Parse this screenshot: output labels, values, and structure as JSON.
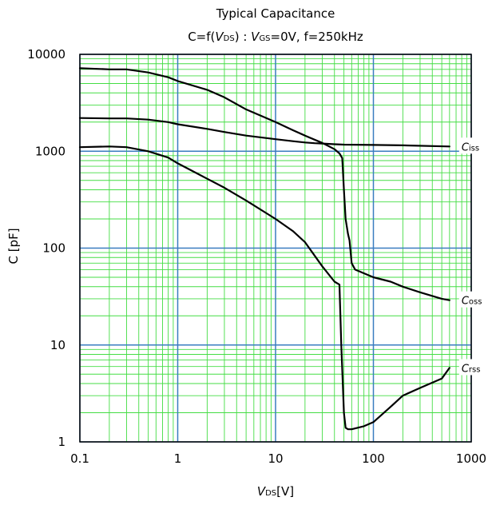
{
  "chart_data": {
    "type": "line",
    "title": "Typical Capacitance",
    "subtitle": {
      "prefix": "C=f(",
      "var1_main": "V",
      "var1_sub": "DS",
      "mid": ") : ",
      "var2_main": "V",
      "var2_sub": "GS",
      "suffix": "=0V, f=250kHz"
    },
    "xlabel": {
      "main": "V",
      "sub": "DS",
      "unit": "[V]"
    },
    "ylabel": "C  [pF]",
    "x_scale": "log",
    "y_scale": "log",
    "xlim": [
      0.1,
      1000
    ],
    "ylim": [
      1,
      10000
    ],
    "x_ticks": [
      {
        "value": 0.1,
        "label": "0.1"
      },
      {
        "value": 1,
        "label": "1"
      },
      {
        "value": 10,
        "label": "10"
      },
      {
        "value": 100,
        "label": "100"
      },
      {
        "value": 1000,
        "label": "1000"
      }
    ],
    "y_ticks": [
      {
        "value": 1,
        "label": "1"
      },
      {
        "value": 10,
        "label": "10"
      },
      {
        "value": 100,
        "label": "100"
      },
      {
        "value": 1000,
        "label": "1000"
      },
      {
        "value": 10000,
        "label": "10000"
      }
    ],
    "grid": true,
    "colors": {
      "major_grid": "#3a7dc0",
      "minor_grid": "#44dd44",
      "line": "#000000"
    },
    "series": [
      {
        "name": "Ciss",
        "label_main": "C",
        "label_sub": "iss",
        "x": [
          0.1,
          0.2,
          0.3,
          0.5,
          0.8,
          1,
          2,
          3,
          5,
          10,
          15,
          20,
          25,
          30,
          40,
          50,
          100,
          200,
          600
        ],
        "y": [
          2200,
          2180,
          2180,
          2120,
          2000,
          1900,
          1700,
          1580,
          1450,
          1330,
          1270,
          1230,
          1210,
          1200,
          1180,
          1170,
          1160,
          1150,
          1120
        ]
      },
      {
        "name": "Coss",
        "label_main": "C",
        "label_sub": "oss",
        "x": [
          0.1,
          0.2,
          0.3,
          0.5,
          0.8,
          1,
          2,
          3,
          5,
          10,
          15,
          20,
          30,
          40,
          45,
          48,
          50,
          52,
          55,
          57,
          60,
          65,
          80,
          100,
          150,
          200,
          300,
          500,
          600
        ],
        "y": [
          7200,
          7000,
          7000,
          6500,
          5800,
          5300,
          4300,
          3600,
          2700,
          2000,
          1650,
          1450,
          1220,
          1050,
          950,
          850,
          400,
          200,
          140,
          120,
          70,
          60,
          55,
          50,
          45,
          40,
          35,
          30,
          29
        ]
      },
      {
        "name": "Crss",
        "label_main": "C",
        "label_sub": "rss",
        "x": [
          0.1,
          0.2,
          0.3,
          0.5,
          0.8,
          1,
          2,
          3,
          5,
          10,
          15,
          20,
          30,
          40,
          45,
          47,
          50,
          52,
          55,
          60,
          80,
          100,
          150,
          200,
          300,
          500,
          600
        ],
        "y": [
          1100,
          1120,
          1100,
          1000,
          860,
          750,
          520,
          420,
          310,
          200,
          150,
          115,
          65,
          45,
          42,
          10,
          2,
          1.4,
          1.35,
          1.35,
          1.45,
          1.6,
          2.3,
          3.0,
          3.6,
          4.5,
          5.8
        ]
      }
    ]
  }
}
